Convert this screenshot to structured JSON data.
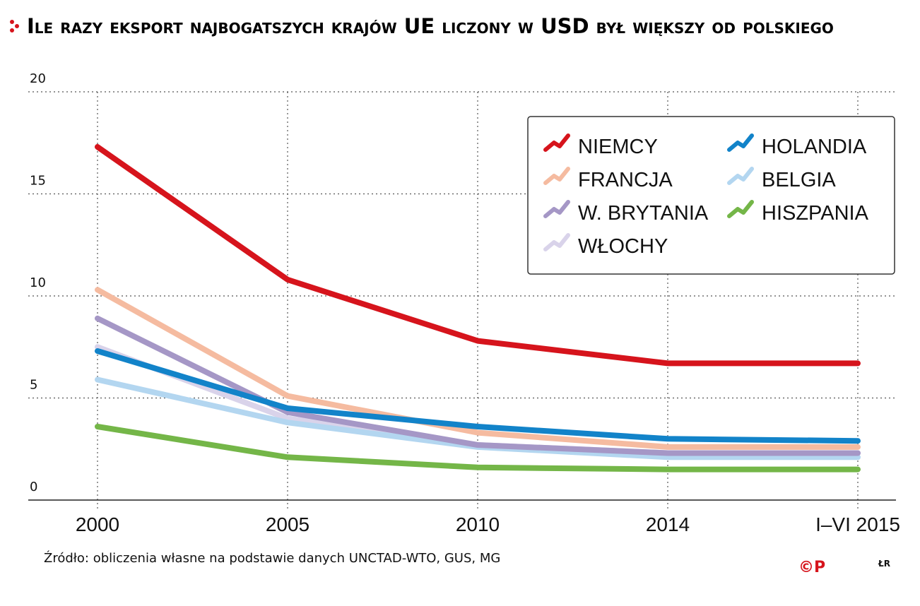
{
  "chart_data": {
    "type": "line",
    "title": "Ile razy eksport najbogatszych krajów UE liczony w USD był większy od polskiego",
    "xlabel": "",
    "ylabel": "",
    "categories": [
      "2000",
      "2005",
      "2010",
      "2014",
      "I–VI 2015"
    ],
    "yticks": [
      "0",
      "5",
      "10",
      "15",
      "20"
    ],
    "ylim": [
      0,
      20
    ],
    "grid": true,
    "legend_position": "top-right",
    "series": [
      {
        "name": "NIEMCY",
        "color": "#d6141c",
        "values": [
          17.3,
          10.8,
          7.8,
          6.7,
          6.7
        ]
      },
      {
        "name": "FRANCJA",
        "color": "#f5bba0",
        "values": [
          10.3,
          5.1,
          3.3,
          2.6,
          2.6
        ]
      },
      {
        "name": "W. BRYTANIA",
        "color": "#a597c6",
        "values": [
          8.9,
          4.3,
          2.7,
          2.3,
          2.3
        ]
      },
      {
        "name": "WŁOCHY",
        "color": "#d9d3ea",
        "values": [
          7.5,
          4.0,
          2.7,
          2.3,
          2.3
        ]
      },
      {
        "name": "BELGIA",
        "color": "#b3d6f0",
        "values": [
          5.9,
          3.8,
          2.6,
          2.1,
          2.1
        ]
      },
      {
        "name": "HOLANDIA",
        "color": "#1283c9",
        "values": [
          7.3,
          4.5,
          3.6,
          3.0,
          2.9
        ]
      },
      {
        "name": "HISZPANIA",
        "color": "#74b648",
        "values": [
          3.6,
          2.1,
          1.6,
          1.5,
          1.5
        ]
      }
    ],
    "legend_order": [
      "NIEMCY",
      "HOLANDIA",
      "FRANCJA",
      "BELGIA",
      "W. BRYTANIA",
      "HISZPANIA",
      "WŁOCHY"
    ]
  },
  "source": "Źródło: obliczenia własne na podstawie danych UNCTAD-WTO, GUS, MG",
  "credit_logo": "©P",
  "credit_initials": "ŁR",
  "colors": {
    "accent": "#d6141c",
    "grid": "#555555",
    "axis": "#222222"
  }
}
